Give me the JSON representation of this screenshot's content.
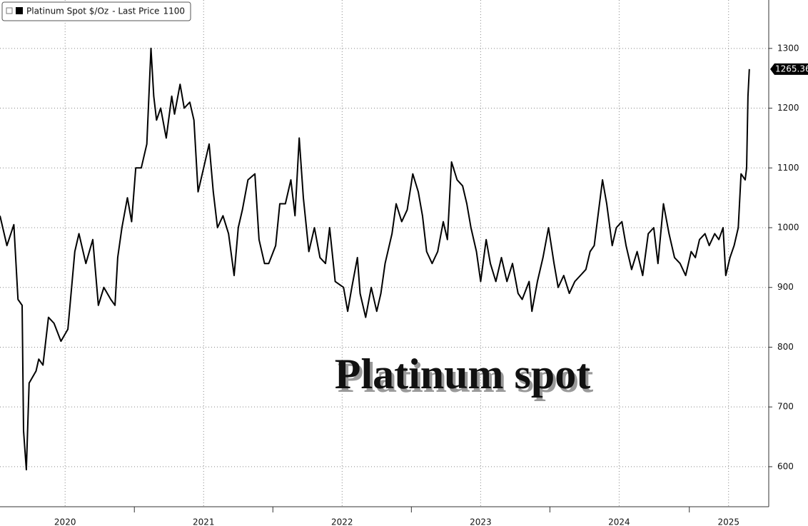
{
  "chart_data": {
    "type": "line",
    "annotation": "Platinum spot",
    "legend_suffix": "- Last Price",
    "series": [
      {
        "name": "Platinum Spot $/Oz",
        "color": "#000000",
        "x": [
          2020.03,
          2020.08,
          2020.13,
          2020.16,
          2020.19,
          2020.2,
          2020.22,
          2020.24,
          2020.29,
          2020.31,
          2020.34,
          2020.38,
          2020.42,
          2020.47,
          2020.52,
          2020.57,
          2020.6,
          2020.65,
          2020.7,
          2020.74,
          2020.78,
          2020.83,
          2020.86,
          2020.88,
          2020.91,
          2020.95,
          2020.98,
          2021.01,
          2021.05,
          2021.09,
          2021.12,
          2021.14,
          2021.16,
          2021.19,
          2021.23,
          2021.27,
          2021.29,
          2021.33,
          2021.36,
          2021.4,
          2021.43,
          2021.46,
          2021.5,
          2021.54,
          2021.57,
          2021.6,
          2021.64,
          2021.68,
          2021.72,
          2021.75,
          2021.78,
          2021.82,
          2021.87,
          2021.9,
          2021.94,
          2021.97,
          2022.02,
          2022.05,
          2022.09,
          2022.13,
          2022.16,
          2022.19,
          2022.22,
          2022.26,
          2022.3,
          2022.34,
          2022.38,
          2022.41,
          2022.45,
          2022.51,
          2022.54,
          2022.57,
          2022.61,
          2022.63,
          2022.67,
          2022.71,
          2022.75,
          2022.78,
          2022.81,
          2022.86,
          2022.89,
          2022.93,
          2022.97,
          2023.01,
          2023.05,
          2023.08,
          2023.11,
          2023.15,
          2023.19,
          2023.23,
          2023.26,
          2023.29,
          2023.33,
          2023.37,
          2023.4,
          2023.43,
          2023.47,
          2023.5,
          2023.54,
          2023.57,
          2023.61,
          2023.65,
          2023.69,
          2023.73,
          2023.77,
          2023.8,
          2023.85,
          2023.87,
          2023.91,
          2023.95,
          2023.99,
          2024.03,
          2024.06,
          2024.1,
          2024.14,
          2024.18,
          2024.22,
          2024.26,
          2024.29,
          2024.32,
          2024.38,
          2024.41,
          2024.45,
          2024.48,
          2024.52,
          2024.55,
          2024.59,
          2024.63,
          2024.67,
          2024.71,
          2024.75,
          2024.78,
          2024.82,
          2024.86,
          2024.9,
          2024.94,
          2024.98,
          2025.02,
          2025.05,
          2025.08,
          2025.12,
          2025.15,
          2025.19,
          2025.22,
          2025.25,
          2025.27,
          2025.3,
          2025.33,
          2025.36,
          2025.38,
          2025.41,
          2025.42,
          2025.43,
          2025.44
        ],
        "values": [
          1020,
          970,
          1005,
          880,
          870,
          660,
          595,
          740,
          760,
          780,
          770,
          850,
          840,
          810,
          830,
          960,
          990,
          940,
          980,
          870,
          900,
          880,
          870,
          950,
          1000,
          1050,
          1010,
          1100,
          1100,
          1140,
          1300,
          1220,
          1180,
          1200,
          1150,
          1220,
          1190,
          1240,
          1200,
          1210,
          1180,
          1060,
          1100,
          1140,
          1060,
          1000,
          1020,
          990,
          920,
          1000,
          1030,
          1080,
          1090,
          980,
          940,
          940,
          970,
          1040,
          1040,
          1080,
          1020,
          1150,
          1050,
          960,
          1000,
          950,
          940,
          1000,
          910,
          900,
          860,
          900,
          950,
          890,
          850,
          900,
          860,
          890,
          940,
          990,
          1040,
          1010,
          1030,
          1090,
          1060,
          1020,
          960,
          940,
          960,
          1010,
          980,
          1110,
          1080,
          1070,
          1040,
          1000,
          960,
          910,
          980,
          940,
          910,
          950,
          910,
          940,
          890,
          880,
          910,
          860,
          910,
          950,
          1000,
          940,
          900,
          920,
          890,
          910,
          920,
          930,
          960,
          970,
          1080,
          1040,
          970,
          1000,
          1010,
          970,
          930,
          960,
          920,
          990,
          1000,
          940,
          1040,
          990,
          950,
          940,
          920,
          960,
          950,
          980,
          990,
          970,
          990,
          980,
          1000,
          920,
          950,
          970,
          1000,
          1090,
          1080,
          1100,
          1220,
          1265.36
        ]
      }
    ],
    "xlim": [
      2020.03,
      2025.58
    ],
    "xticks": [
      {
        "value": 2020.5,
        "label": "2020"
      },
      {
        "value": 2021.5,
        "label": "2021"
      },
      {
        "value": 2022.5,
        "label": "2022"
      },
      {
        "value": 2023.5,
        "label": "2023"
      },
      {
        "value": 2024.5,
        "label": "2024"
      },
      {
        "value": 2025.29,
        "label": "2025"
      }
    ],
    "ylim": [
      533,
      1381
    ],
    "yticks": [
      600,
      700,
      800,
      900,
      1000,
      1100,
      1200,
      1300
    ],
    "grid": true
  }
}
